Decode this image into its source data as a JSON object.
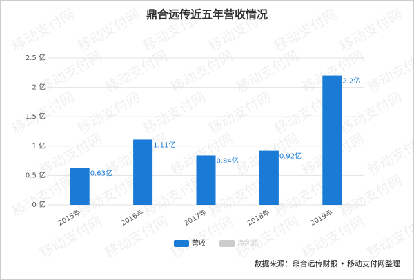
{
  "chart_data": {
    "type": "bar",
    "title": "鼎合远传近五年营收情况",
    "categories": [
      "2015年",
      "2016年",
      "2017年",
      "2018年",
      "2019年"
    ],
    "series": [
      {
        "name": "营收",
        "color": "#1a7bd6",
        "values": [
          0.63,
          1.11,
          0.84,
          0.92,
          2.2
        ],
        "value_labels": [
          "0.63亿",
          "1.11亿",
          "0.84亿",
          "0.92亿",
          "2.2亿"
        ]
      }
    ],
    "hidden_series": [
      {
        "name": "净利润",
        "color": "#cccccc"
      }
    ],
    "ylim": [
      0,
      2.5
    ],
    "yticks": [
      {
        "value": 0,
        "label": "0 亿"
      },
      {
        "value": 0.5,
        "label": "0.5 亿"
      },
      {
        "value": 1,
        "label": "1 亿"
      },
      {
        "value": 1.5,
        "label": "1.5 亿"
      },
      {
        "value": 2,
        "label": "2 亿"
      },
      {
        "value": 2.5,
        "label": "2.5 亿"
      }
    ],
    "grid": true,
    "source": "数据来源：鼎合远传财报 • 移动支付网整理",
    "watermark": "移动支付网"
  }
}
